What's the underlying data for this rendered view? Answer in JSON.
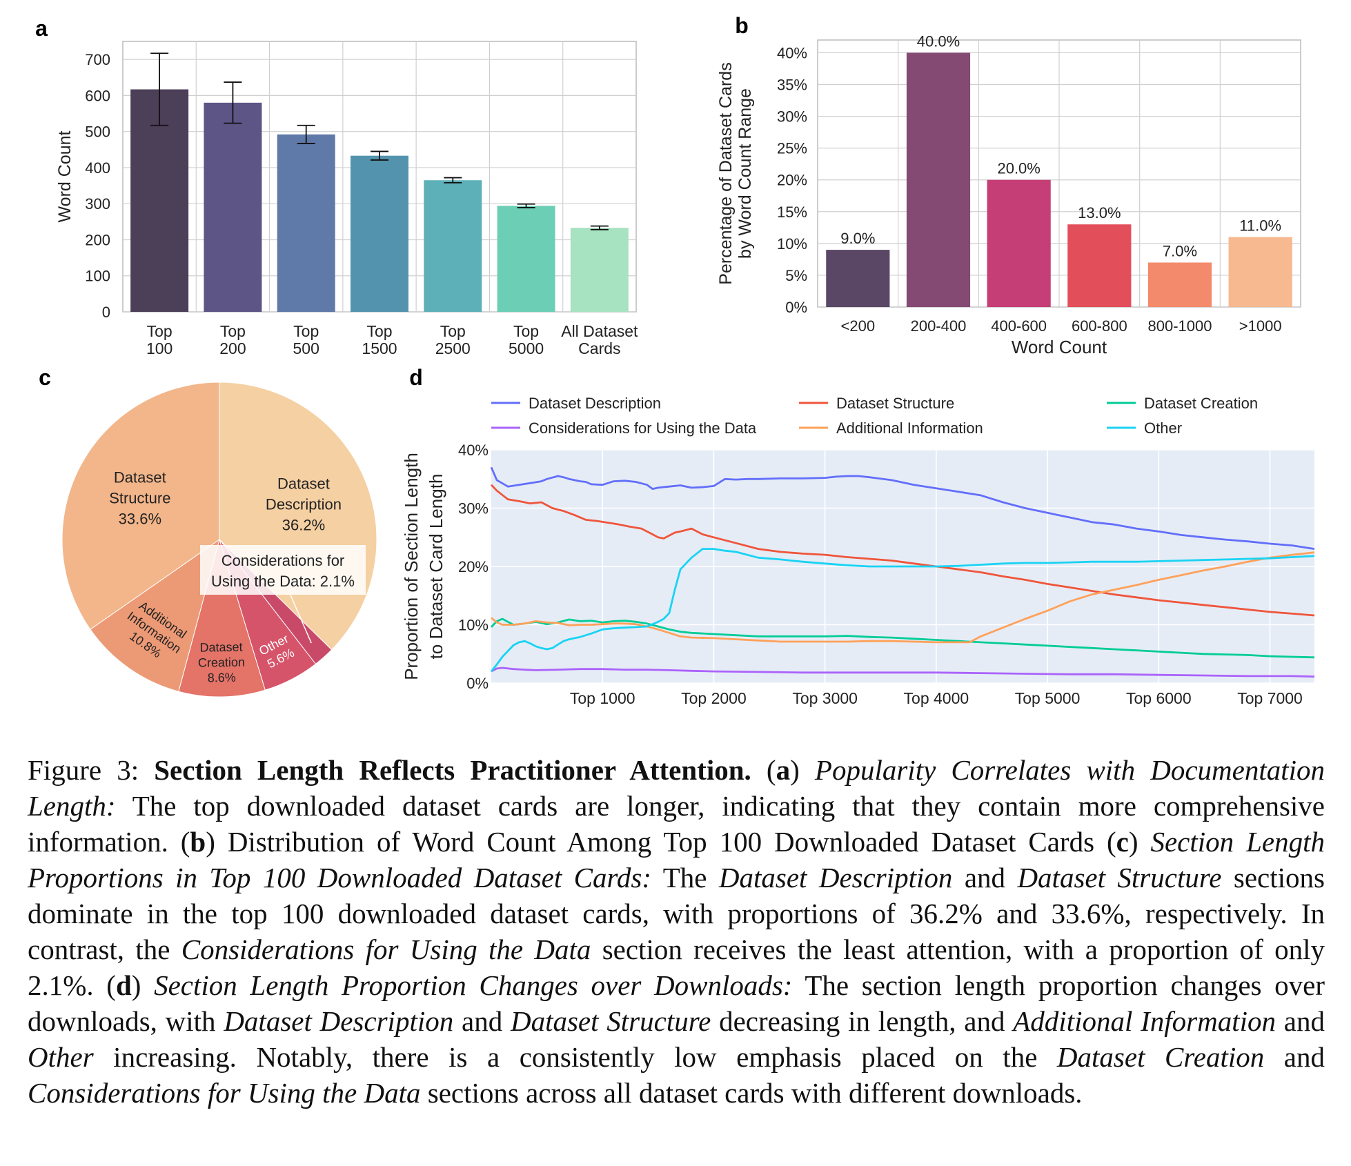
{
  "panels": [
    {
      "letter": "a",
      "chart_data": {
        "type": "bar",
        "categories": [
          "Top\n100",
          "Top\n200",
          "Top\n500",
          "Top\n1500",
          "Top\n2500",
          "Top\n5000",
          "All Dataset\nCards"
        ],
        "values": [
          617,
          580,
          492,
          433,
          365,
          294,
          233
        ],
        "error": [
          100,
          57,
          25,
          12,
          7,
          5,
          5
        ],
        "colors": [
          "#4c3f58",
          "#5c5585",
          "#5f79a8",
          "#5393ad",
          "#5db0b8",
          "#6ccfb5",
          "#a7e2c1"
        ],
        "ylabel": "Word Count",
        "ylim": [
          0,
          750
        ],
        "yticks": [
          0,
          100,
          200,
          300,
          400,
          500,
          600,
          700
        ],
        "grid": true
      }
    },
    {
      "letter": "b",
      "chart_data": {
        "type": "bar",
        "categories": [
          "<200",
          "200-400",
          "400-600",
          "600-800",
          "800-1000",
          ">1000"
        ],
        "values": [
          9.0,
          40.0,
          20.0,
          13.0,
          7.0,
          11.0
        ],
        "data_labels": [
          "9.0%",
          "40.0%",
          "20.0%",
          "13.0%",
          "7.0%",
          "11.0%"
        ],
        "colors": [
          "#5a4766",
          "#844a73",
          "#c53e75",
          "#e34e5b",
          "#f38a6b",
          "#f6b990"
        ],
        "xlabel": "Word Count",
        "ylabel_lines": [
          "Percentage of Dataset Cards",
          "by Word Count Range"
        ],
        "ylim": [
          0,
          42
        ],
        "yticks": [
          0,
          5,
          10,
          15,
          20,
          25,
          30,
          35,
          40
        ],
        "ytick_labels": [
          "0%",
          "5%",
          "10%",
          "15%",
          "20%",
          "25%",
          "30%",
          "35%",
          "40%"
        ],
        "grid": true
      }
    },
    {
      "letter": "c",
      "chart_data": {
        "type": "pie",
        "slices": [
          {
            "label": "Dataset Description",
            "value": 36.2,
            "display": [
              "Dataset",
              "Description",
              "36.2%"
            ],
            "color": "#f5d0a3"
          },
          {
            "label": "Considerations for Using the Data",
            "value": 2.1,
            "display": [],
            "color": "#c94a68"
          },
          {
            "label": "Other",
            "value": 5.6,
            "display": [
              "Other",
              "5.6%"
            ],
            "color": "#d6546a"
          },
          {
            "label": "Dataset Creation",
            "value": 8.6,
            "display": [
              "Dataset",
              "Creation",
              "8.6%"
            ],
            "color": "#e47368"
          },
          {
            "label": "Additional Information",
            "value": 10.8,
            "display": [
              "Additional",
              "Information",
              "10.8%"
            ],
            "color": "#ec9a75"
          },
          {
            "label": "Dataset Structure",
            "value": 33.6,
            "display": [
              "Dataset",
              "Structure",
              "33.6%"
            ],
            "color": "#f2b68a"
          }
        ],
        "callout": [
          "Considerations for",
          "Using the Data: 2.1%"
        ]
      }
    },
    {
      "letter": "d",
      "chart_data": {
        "type": "line",
        "ylabel_lines": [
          "Proportion of Section Length",
          "to Dataset Card Length"
        ],
        "xlim": [
          0,
          7400
        ],
        "ylim": [
          0,
          40
        ],
        "xticks": [
          1000,
          2000,
          3000,
          4000,
          5000,
          6000,
          7000
        ],
        "xtick_labels": [
          "Top 1000",
          "Top 2000",
          "Top 3000",
          "Top 4000",
          "Top 5000",
          "Top 6000",
          "Top 7000"
        ],
        "yticks": [
          0,
          10,
          20,
          30,
          40
        ],
        "ytick_labels": [
          "0%",
          "10%",
          "20%",
          "30%",
          "40%"
        ],
        "legend_position": "top",
        "series": [
          {
            "name": "Dataset Description",
            "color": "#636efa",
            "x": [
              0,
              50,
              150,
              250,
              350,
              450,
              500,
              600,
              650,
              700,
              800,
              850,
              900,
              1000,
              1100,
              1200,
              1300,
              1400,
              1450,
              1500,
              1600,
              1700,
              1800,
              1900,
              2000,
              2100,
              2200,
              2300,
              2400,
              2600,
              2800,
              3000,
              3100,
              3200,
              3300,
              3400,
              3600,
              3800,
              4000,
              4200,
              4400,
              4600,
              4800,
              5000,
              5200,
              5400,
              5600,
              5800,
              6000,
              6200,
              6400,
              6600,
              6800,
              7000,
              7200,
              7400
            ],
            "y": [
              37,
              34.8,
              33.7,
              34.0,
              34.3,
              34.6,
              35.0,
              35.5,
              35.3,
              35.0,
              34.6,
              34.5,
              34.1,
              34.0,
              34.6,
              34.7,
              34.5,
              34.0,
              33.3,
              33.5,
              33.7,
              33.9,
              33.5,
              33.6,
              33.8,
              35.0,
              34.9,
              35.0,
              35.0,
              35.1,
              35.1,
              35.2,
              35.4,
              35.5,
              35.5,
              35.3,
              34.8,
              34.0,
              33.4,
              32.8,
              32.2,
              31.0,
              30.0,
              29.2,
              28.4,
              27.6,
              27.2,
              26.5,
              26.0,
              25.4,
              25.0,
              24.6,
              24.3,
              23.9,
              23.6,
              23.0
            ]
          },
          {
            "name": "Dataset Structure",
            "color": "#ef553b",
            "x": [
              0,
              50,
              150,
              250,
              350,
              450,
              550,
              650,
              750,
              850,
              950,
              1050,
              1150,
              1250,
              1350,
              1450,
              1500,
              1550,
              1650,
              1700,
              1800,
              1900,
              2000,
              2200,
              2400,
              2600,
              2800,
              3000,
              3200,
              3400,
              3600,
              3800,
              4000,
              4200,
              4400,
              4600,
              4800,
              5000,
              5200,
              5400,
              5600,
              5800,
              6000,
              6200,
              6400,
              6600,
              6800,
              7000,
              7200,
              7400
            ],
            "y": [
              34,
              33,
              31.5,
              31.2,
              30.8,
              31.0,
              30.0,
              29.5,
              28.8,
              28.0,
              27.8,
              27.5,
              27.2,
              26.8,
              26.5,
              25.5,
              25.0,
              24.8,
              25.8,
              26.0,
              26.5,
              25.5,
              25.0,
              24.0,
              23.0,
              22.5,
              22.2,
              22.0,
              21.6,
              21.3,
              21.0,
              20.5,
              20.0,
              19.5,
              19.0,
              18.3,
              17.7,
              17.0,
              16.4,
              15.8,
              15.2,
              14.7,
              14.2,
              13.8,
              13.4,
              13.0,
              12.6,
              12.2,
              11.9,
              11.6
            ]
          },
          {
            "name": "Dataset Creation",
            "color": "#00cc96",
            "x": [
              0,
              50,
              100,
              150,
              200,
              300,
              400,
              500,
              600,
              700,
              800,
              900,
              1000,
              1100,
              1200,
              1300,
              1400,
              1500,
              1600,
              1700,
              1800,
              2000,
              2200,
              2400,
              2600,
              2800,
              3000,
              3200,
              3400,
              3600,
              3800,
              4000,
              4200,
              4400,
              4600,
              4800,
              5000,
              5200,
              5400,
              5600,
              5800,
              6000,
              6200,
              6400,
              6600,
              6800,
              7000,
              7200,
              7400
            ],
            "y": [
              9.6,
              10.6,
              11.0,
              10.5,
              10.0,
              10.2,
              10.5,
              10.1,
              10.4,
              10.9,
              10.6,
              10.7,
              10.4,
              10.6,
              10.7,
              10.5,
              10.2,
              9.7,
              9.2,
              8.8,
              8.6,
              8.4,
              8.2,
              8.0,
              8.0,
              8.0,
              8.0,
              8.1,
              7.9,
              7.8,
              7.6,
              7.4,
              7.2,
              7.0,
              6.8,
              6.6,
              6.4,
              6.2,
              6.0,
              5.8,
              5.6,
              5.4,
              5.2,
              5.0,
              4.9,
              4.8,
              4.6,
              4.5,
              4.4
            ]
          },
          {
            "name": "Considerations for Using the Data",
            "color": "#ab63fa",
            "x": [
              0,
              50,
              100,
              200,
              300,
              400,
              600,
              800,
              1000,
              1200,
              1400,
              1600,
              1800,
              2000,
              2400,
              2800,
              3200,
              3600,
              4000,
              4400,
              4800,
              5200,
              5600,
              6000,
              6400,
              6800,
              7200,
              7400
            ],
            "y": [
              2.0,
              2.5,
              2.6,
              2.4,
              2.3,
              2.2,
              2.3,
              2.4,
              2.4,
              2.3,
              2.3,
              2.2,
              2.1,
              2.0,
              1.9,
              1.8,
              1.8,
              1.8,
              1.8,
              1.7,
              1.6,
              1.5,
              1.5,
              1.4,
              1.3,
              1.2,
              1.2,
              1.1
            ]
          },
          {
            "name": "Additional Information",
            "color": "#ffa15a",
            "x": [
              0,
              50,
              100,
              200,
              300,
              400,
              500,
              600,
              700,
              800,
              900,
              1000,
              1100,
              1200,
              1300,
              1400,
              1500,
              1600,
              1700,
              1800,
              2000,
              2200,
              2400,
              2600,
              2800,
              3000,
              3200,
              3400,
              3600,
              3800,
              4000,
              4200,
              4300,
              4400,
              4600,
              4800,
              5000,
              5200,
              5400,
              5600,
              5800,
              6000,
              6200,
              6400,
              6600,
              6800,
              7000,
              7200,
              7400
            ],
            "y": [
              11.2,
              10.4,
              10.0,
              10.0,
              10.2,
              10.6,
              10.4,
              10.3,
              9.9,
              10.0,
              10.0,
              10.1,
              10.2,
              10.2,
              10.1,
              9.7,
              9.2,
              8.6,
              8.0,
              7.8,
              7.7,
              7.5,
              7.3,
              7.1,
              7.1,
              7.1,
              7.1,
              7.2,
              7.2,
              7.1,
              7.0,
              7.0,
              7.0,
              8.0,
              9.5,
              11.0,
              12.4,
              14.0,
              15.2,
              16.0,
              16.8,
              17.7,
              18.5,
              19.3,
              20.0,
              20.8,
              21.5,
              22.0,
              22.4
            ]
          },
          {
            "name": "Other",
            "color": "#19d3f3",
            "x": [
              0,
              50,
              100,
              150,
              200,
              250,
              300,
              350,
              400,
              450,
              500,
              550,
              600,
              650,
              700,
              750,
              800,
              900,
              1000,
              1100,
              1200,
              1300,
              1400,
              1500,
              1550,
              1600,
              1650,
              1700,
              1800,
              1900,
              2000,
              2100,
              2200,
              2400,
              2600,
              2800,
              3000,
              3200,
              3400,
              3600,
              3800,
              4000,
              4200,
              4400,
              4600,
              4800,
              5000,
              5200,
              5400,
              5600,
              5800,
              6000,
              6200,
              6400,
              6600,
              6800,
              7000,
              7200,
              7400
            ],
            "y": [
              2.0,
              3.2,
              4.5,
              5.5,
              6.5,
              7.0,
              7.2,
              6.8,
              6.3,
              6.0,
              5.8,
              6.0,
              6.6,
              7.2,
              7.5,
              7.7,
              7.9,
              8.5,
              9.2,
              9.4,
              9.5,
              9.6,
              9.7,
              10.5,
              11.0,
              12.0,
              16.0,
              19.5,
              21.5,
              23.0,
              23.0,
              22.7,
              22.5,
              21.5,
              21.2,
              20.8,
              20.5,
              20.2,
              20.0,
              20.0,
              20.0,
              20.0,
              20.1,
              20.3,
              20.5,
              20.6,
              20.6,
              20.7,
              20.8,
              20.8,
              20.8,
              20.9,
              21.0,
              21.1,
              21.2,
              21.3,
              21.4,
              21.6,
              21.8
            ]
          }
        ]
      }
    }
  ],
  "caption": {
    "parts": [
      {
        "t": "Figure 3: ",
        "s": "n"
      },
      {
        "t": "Section Length Reflects Practitioner Attention.",
        "s": "b"
      },
      {
        "t": " (",
        "s": "n"
      },
      {
        "t": "a",
        "s": "b"
      },
      {
        "t": ") ",
        "s": "n"
      },
      {
        "t": "Popularity Correlates with Documentation Length:",
        "s": "i"
      },
      {
        "t": " The top downloaded dataset cards are longer, indicating that they contain more comprehensive information. (",
        "s": "n"
      },
      {
        "t": "b",
        "s": "b"
      },
      {
        "t": ") Distribution of Word Count Among Top 100 Downloaded Dataset Cards (",
        "s": "n"
      },
      {
        "t": "c",
        "s": "b"
      },
      {
        "t": ") ",
        "s": "n"
      },
      {
        "t": "Section Length Proportions in Top 100 Downloaded Dataset Cards:",
        "s": "i"
      },
      {
        "t": " The ",
        "s": "n"
      },
      {
        "t": "Dataset Description",
        "s": "i"
      },
      {
        "t": " and ",
        "s": "n"
      },
      {
        "t": "Dataset Structure",
        "s": "i"
      },
      {
        "t": " sections dominate in the top 100 downloaded dataset cards, with proportions of 36.2% and 33.6%, respectively. In contrast, the ",
        "s": "n"
      },
      {
        "t": "Considerations for Using the Data",
        "s": "i"
      },
      {
        "t": " section receives the least attention, with a proportion of only 2.1%. (",
        "s": "n"
      },
      {
        "t": "d",
        "s": "b"
      },
      {
        "t": ") ",
        "s": "n"
      },
      {
        "t": "Section Length Proportion Changes over Downloads:",
        "s": "i"
      },
      {
        "t": " The section length proportion changes over downloads, with ",
        "s": "n"
      },
      {
        "t": "Dataset Description",
        "s": "i"
      },
      {
        "t": " and ",
        "s": "n"
      },
      {
        "t": "Dataset Structure",
        "s": "i"
      },
      {
        "t": " decreasing in length, and ",
        "s": "n"
      },
      {
        "t": "Additional Information",
        "s": "i"
      },
      {
        "t": " and ",
        "s": "n"
      },
      {
        "t": "Other",
        "s": "i"
      },
      {
        "t": " increasing. Notably, there is a consistently low emphasis placed on the ",
        "s": "n"
      },
      {
        "t": "Dataset Creation",
        "s": "i"
      },
      {
        "t": " and ",
        "s": "n"
      },
      {
        "t": "Considerations for Using the Data",
        "s": "i"
      },
      {
        "t": " sections across all dataset cards with different downloads.",
        "s": "n"
      }
    ]
  }
}
